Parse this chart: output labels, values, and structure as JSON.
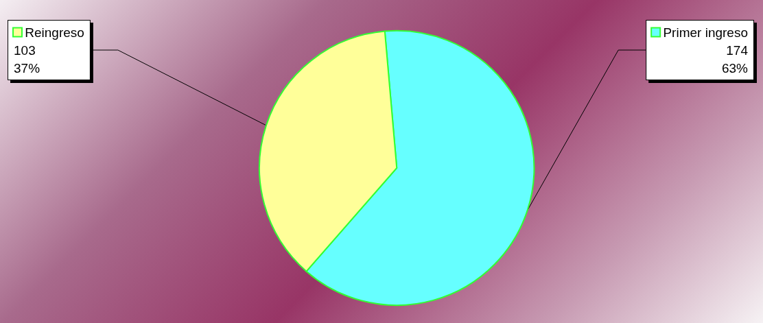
{
  "chart_data": {
    "type": "pie",
    "categories": [
      "Primer ingreso",
      "Reingreso"
    ],
    "values": [
      174,
      103
    ],
    "colors": [
      "#66ffff",
      "#ffff99"
    ],
    "value_labels": [
      "174\n63%",
      "103\n37%"
    ],
    "legend": "top"
  }
}
